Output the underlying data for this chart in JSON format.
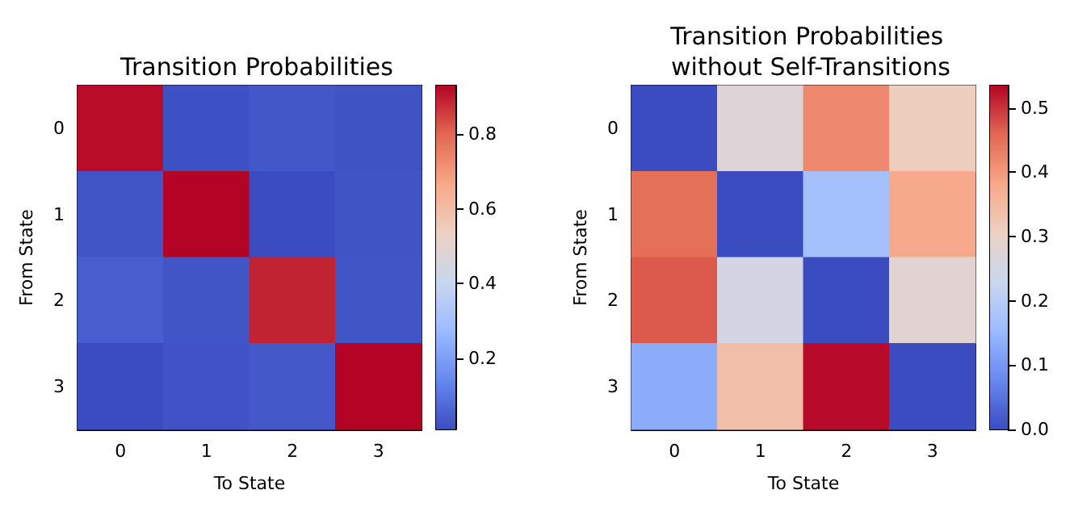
{
  "chart_data": [
    {
      "type": "heatmap",
      "title": "Transition Probabilities",
      "xlabel": "To State",
      "ylabel": "From State",
      "categories": [
        "0",
        "1",
        "2",
        "3"
      ],
      "y_categories": [
        "0",
        "1",
        "2",
        "3"
      ],
      "cells": [
        [
          0.92,
          0.02,
          0.035,
          0.025
        ],
        [
          0.03,
          0.93,
          0.01,
          0.027
        ],
        [
          0.05,
          0.03,
          0.89,
          0.03
        ],
        [
          0.01,
          0.024,
          0.037,
          0.93
        ]
      ],
      "clim": [
        0.01,
        0.93
      ],
      "cticks": [
        0.2,
        0.4,
        0.6,
        0.8
      ]
    },
    {
      "type": "heatmap",
      "title": "Transition Probabilities without Self-Transitions",
      "xlabel": "To State",
      "ylabel": "From State",
      "categories": [
        "0",
        "1",
        "2",
        "3"
      ],
      "y_categories": [
        "0",
        "1",
        "2",
        "3"
      ],
      "cells": [
        [
          0.0,
          0.27,
          0.42,
          0.31
        ],
        [
          0.45,
          0.0,
          0.17,
          0.38
        ],
        [
          0.47,
          0.25,
          0.0,
          0.28
        ],
        [
          0.13,
          0.34,
          0.53,
          0.0
        ]
      ],
      "clim": [
        0,
        0.535
      ],
      "cticks": [
        {
          "value": 0,
          "label": "0.0"
        },
        0.1,
        0.2,
        0.3,
        0.4,
        0.5
      ]
    }
  ]
}
